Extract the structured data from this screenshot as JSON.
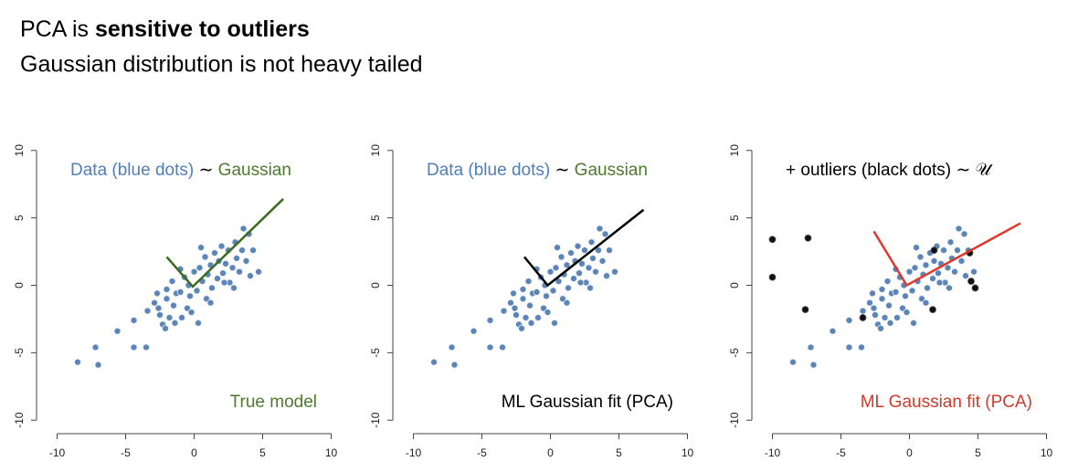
{
  "header": {
    "line1_normal": "PCA is",
    "line1_bold": "sensitive to outliers",
    "line2": "Gaussian distribution is not heavy tailed"
  },
  "chart_data": [
    {
      "type": "scatter",
      "annotation_top": [
        {
          "text": "Data (blue dots)",
          "color": "#4f7fb8"
        },
        {
          "text": "∼",
          "color": "#000000"
        },
        {
          "text": "Gaussian",
          "color": "#4e7a2e"
        }
      ],
      "annotation_bottom": [
        {
          "text": "True model",
          "color": "#4e7a2e"
        }
      ],
      "xlim": [
        -11.5,
        11.5
      ],
      "ylim": [
        -11,
        11
      ],
      "xticks": [
        -10,
        -5,
        0,
        5,
        10
      ],
      "yticks": [
        -10,
        -5,
        0,
        5,
        10
      ],
      "points": {
        "color": "#5b84b8",
        "x": [
          -8.5,
          -7,
          -7.2,
          -5.6,
          -4.4,
          -4.4,
          -3.5,
          -3.4,
          -2.9,
          -2.7,
          -2.5,
          -2.3,
          -2.1,
          -2.0,
          -2.0,
          -1.8,
          -1.6,
          -1.5,
          -1.3,
          -1.0,
          -1.0,
          -0.9,
          -0.7,
          -0.5,
          -0.3,
          -0.2,
          0.0,
          0.2,
          0.3,
          0.4,
          0.6,
          0.8,
          0.9,
          1.0,
          1.2,
          1.3,
          1.5,
          1.7,
          1.8,
          2.0,
          2.1,
          2.3,
          2.5,
          2.6,
          2.8,
          3.0,
          3.1,
          3.3,
          3.5,
          3.6,
          3.8,
          4.0,
          4.1,
          4.3,
          4.7,
          2.9,
          1.2,
          -0.4,
          0.5,
          2.2,
          -1.4,
          -2.6
        ],
        "y": [
          -5.7,
          -5.9,
          -4.6,
          -3.4,
          -4.6,
          -2.6,
          -4.6,
          -1.9,
          -1.3,
          -0.6,
          -2.2,
          -2.9,
          -3.2,
          -1.0,
          -0.3,
          -2.4,
          0.3,
          -1.5,
          -0.6,
          1.2,
          -0.5,
          -2.4,
          0.6,
          -1.7,
          -0.8,
          -2.0,
          1.0,
          -0.4,
          -2.8,
          1.3,
          0.3,
          2.1,
          -1.0,
          0.8,
          1.5,
          -0.2,
          2.4,
          0.5,
          1.8,
          2.9,
          0.9,
          1.6,
          2.6,
          0.2,
          1.3,
          3.2,
          2.0,
          1.0,
          2.6,
          4.2,
          1.8,
          3.8,
          0.7,
          2.6,
          1.0,
          -0.2,
          -1.3,
          0.0,
          2.8,
          0.2,
          -2.8,
          -1.7
        ]
      },
      "line": {
        "color": "#3a6b1f",
        "x": [
          -2.0,
          -0.1,
          6.5
        ],
        "y": [
          2.1,
          -0.1,
          6.4
        ]
      }
    },
    {
      "type": "scatter",
      "annotation_top": [
        {
          "text": "Data (blue dots)",
          "color": "#4f7fb8"
        },
        {
          "text": "∼",
          "color": "#000000"
        },
        {
          "text": "Gaussian",
          "color": "#4e7a2e"
        }
      ],
      "annotation_bottom": [
        {
          "text": "ML Gaussian fit (PCA)",
          "color": "#000000"
        }
      ],
      "xlim": [
        -11.5,
        11.5
      ],
      "ylim": [
        -11,
        11
      ],
      "xticks": [
        -10,
        -5,
        0,
        5,
        10
      ],
      "yticks": [
        -10,
        -5,
        0,
        5,
        10
      ],
      "points": {
        "color": "#5b84b8",
        "x": [
          -8.5,
          -7,
          -7.2,
          -5.6,
          -4.4,
          -4.4,
          -3.5,
          -3.4,
          -2.9,
          -2.7,
          -2.5,
          -2.3,
          -2.1,
          -2.0,
          -2.0,
          -1.8,
          -1.6,
          -1.5,
          -1.3,
          -1.0,
          -1.0,
          -0.9,
          -0.7,
          -0.5,
          -0.3,
          -0.2,
          0.0,
          0.2,
          0.3,
          0.4,
          0.6,
          0.8,
          0.9,
          1.0,
          1.2,
          1.3,
          1.5,
          1.7,
          1.8,
          2.0,
          2.1,
          2.3,
          2.5,
          2.6,
          2.8,
          3.0,
          3.1,
          3.3,
          3.5,
          3.6,
          3.8,
          4.0,
          4.1,
          4.3,
          4.7,
          2.9,
          1.2,
          -0.4,
          0.5,
          2.2,
          -1.4,
          -2.6
        ],
        "y": [
          -5.7,
          -5.9,
          -4.6,
          -3.4,
          -4.6,
          -2.6,
          -4.6,
          -1.9,
          -1.3,
          -0.6,
          -2.2,
          -2.9,
          -3.2,
          -1.0,
          -0.3,
          -2.4,
          0.3,
          -1.5,
          -0.6,
          1.2,
          -0.5,
          -2.4,
          0.6,
          -1.7,
          -0.8,
          -2.0,
          1.0,
          -0.4,
          -2.8,
          1.3,
          0.3,
          2.1,
          -1.0,
          0.8,
          1.5,
          -0.2,
          2.4,
          0.5,
          1.8,
          2.9,
          0.9,
          1.6,
          2.6,
          0.2,
          1.3,
          3.2,
          2.0,
          1.0,
          2.6,
          4.2,
          1.8,
          3.8,
          0.7,
          2.6,
          1.0,
          -0.2,
          -1.3,
          0.0,
          2.8,
          0.2,
          -2.8,
          -1.7
        ]
      },
      "line": {
        "color": "#000000",
        "x": [
          -1.9,
          -0.2,
          6.8
        ],
        "y": [
          2.1,
          0.0,
          5.6
        ]
      }
    },
    {
      "type": "scatter",
      "annotation_top": [
        {
          "text": "+ outliers (black dots)",
          "color": "#000000"
        },
        {
          "text": "∼ 𝒰",
          "color": "#000000"
        }
      ],
      "annotation_bottom": [
        {
          "text": "ML Gaussian fit (PCA)",
          "color": "#d03a2c"
        }
      ],
      "xlim": [
        -11.5,
        11.5
      ],
      "ylim": [
        -11,
        11
      ],
      "xticks": [
        -10,
        -5,
        0,
        5,
        10
      ],
      "yticks": [
        -10,
        -5,
        0,
        5,
        10
      ],
      "points": {
        "color": "#5b84b8",
        "x": [
          -8.5,
          -7,
          -7.2,
          -5.6,
          -4.4,
          -4.4,
          -3.5,
          -3.4,
          -2.9,
          -2.7,
          -2.5,
          -2.3,
          -2.1,
          -2.0,
          -2.0,
          -1.8,
          -1.6,
          -1.5,
          -1.3,
          -1.0,
          -1.0,
          -0.9,
          -0.7,
          -0.5,
          -0.3,
          -0.2,
          0.0,
          0.2,
          0.3,
          0.4,
          0.6,
          0.8,
          0.9,
          1.0,
          1.2,
          1.3,
          1.5,
          1.7,
          1.8,
          2.0,
          2.1,
          2.3,
          2.5,
          2.6,
          2.8,
          3.0,
          3.1,
          3.3,
          3.5,
          3.6,
          3.8,
          4.0,
          4.1,
          4.3,
          4.7,
          2.9,
          1.2,
          -0.4,
          0.5,
          2.2,
          -1.4,
          -2.6
        ],
        "y": [
          -5.7,
          -5.9,
          -4.6,
          -3.4,
          -4.6,
          -2.6,
          -4.6,
          -1.9,
          -1.3,
          -0.6,
          -2.2,
          -2.9,
          -3.2,
          -1.0,
          -0.3,
          -2.4,
          0.3,
          -1.5,
          -0.6,
          1.2,
          -0.5,
          -2.4,
          0.6,
          -1.7,
          -0.8,
          -2.0,
          1.0,
          -0.4,
          -2.8,
          1.3,
          0.3,
          2.1,
          -1.0,
          0.8,
          1.5,
          -0.2,
          2.4,
          0.5,
          1.8,
          2.9,
          0.9,
          1.6,
          2.6,
          0.2,
          1.3,
          3.2,
          2.0,
          1.0,
          2.6,
          4.2,
          1.8,
          3.8,
          0.7,
          2.6,
          1.0,
          -0.2,
          -1.3,
          0.0,
          2.8,
          0.2,
          -2.8,
          -1.7
        ]
      },
      "outliers": {
        "color": "#111111",
        "x": [
          -10,
          -10,
          -7.4,
          -7.6,
          -3.4,
          1.7,
          1.8,
          4.4,
          4.5,
          4.8
        ],
        "y": [
          3.4,
          0.6,
          3.5,
          -1.8,
          -2.4,
          -1.8,
          2.6,
          2.4,
          0.3,
          -0.2
        ]
      },
      "line": {
        "color": "#e0372b",
        "x": [
          -2.6,
          -0.2,
          8.1
        ],
        "y": [
          4.0,
          0.0,
          4.6
        ]
      }
    }
  ]
}
